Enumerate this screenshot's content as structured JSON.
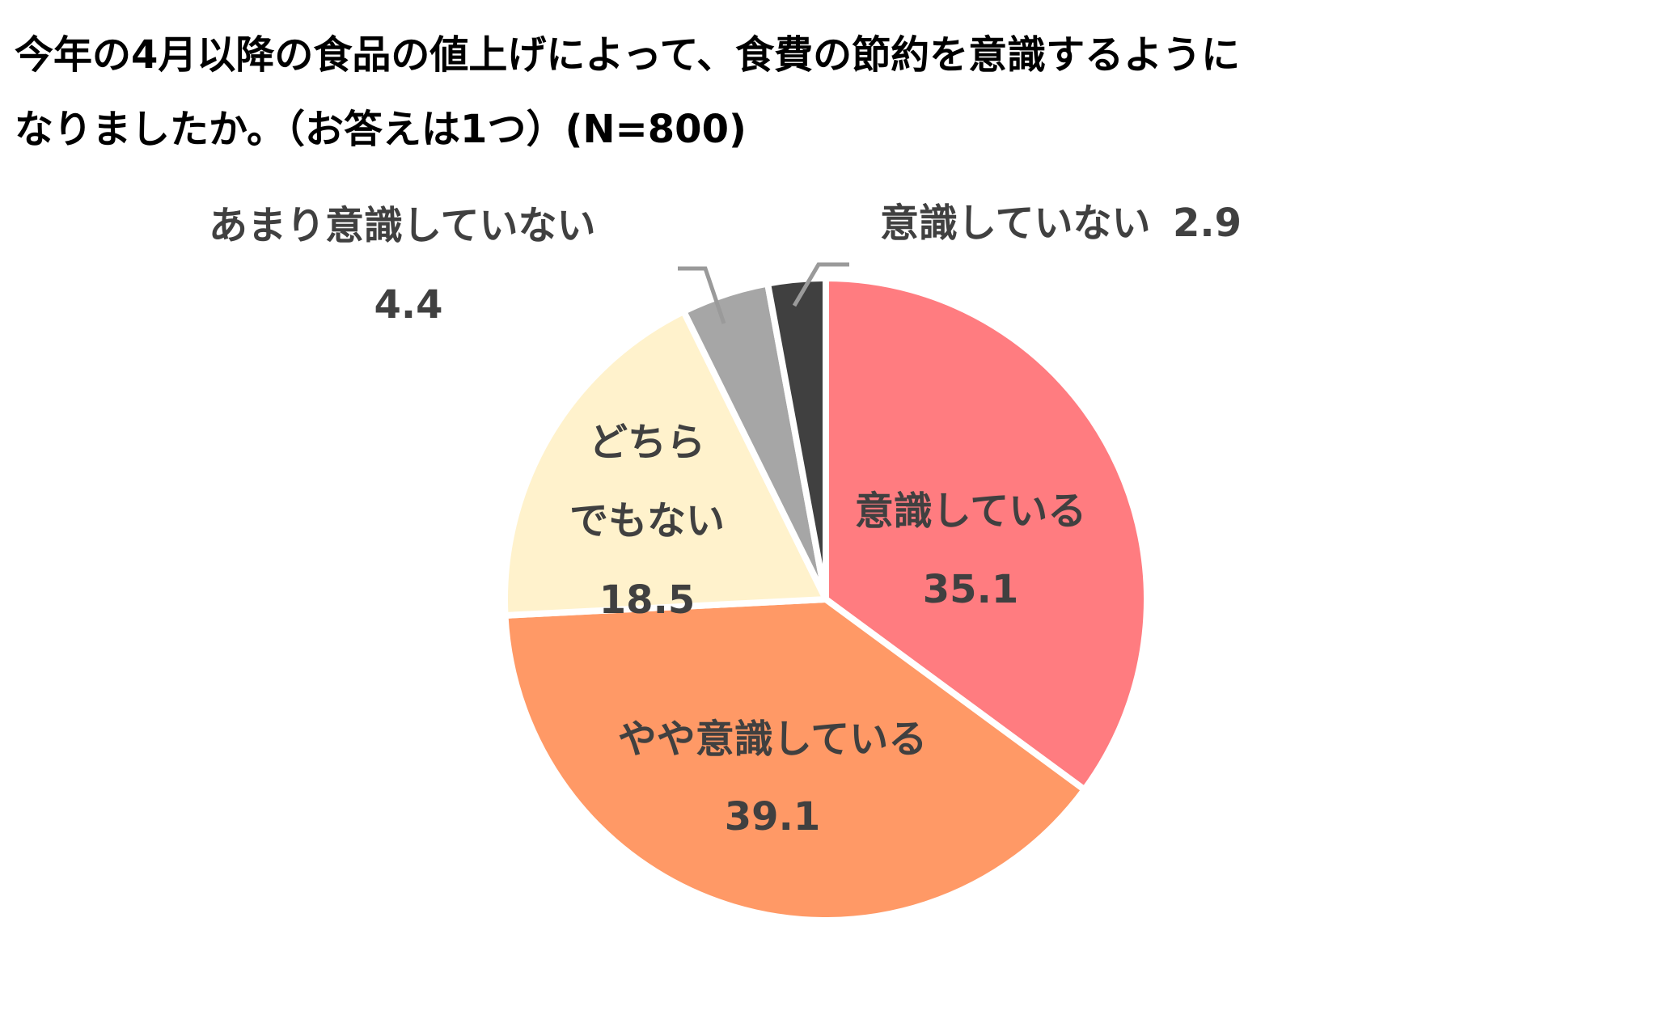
{
  "chart_data": {
    "type": "pie",
    "title_lines": [
      "今年の4月以降の食品の値上げによって、食費の節約を意識するように",
      "なりましたか。（お答えは1つ）(N=800)"
    ],
    "start_angle_deg": 0,
    "direction": "clockwise",
    "slices": [
      {
        "label_lines": [
          "意識している"
        ],
        "value": 35.1,
        "value_text": "35.1",
        "color": "#FF7C80"
      },
      {
        "label_lines": [
          "やや意識している"
        ],
        "value": 39.1,
        "value_text": "39.1",
        "color": "#FF9966"
      },
      {
        "label_lines": [
          "どちら",
          "でもない"
        ],
        "value": 18.5,
        "value_text": "18.5",
        "color": "#FFF2CC"
      },
      {
        "label_lines": [
          "あまり意識していない"
        ],
        "value": 4.4,
        "value_text": "4.4",
        "color": "#A6A6A6"
      },
      {
        "label_lines": [
          "意識していない"
        ],
        "value": 2.9,
        "value_text": "2.9",
        "color": "#404040"
      }
    ],
    "legend": "none"
  }
}
